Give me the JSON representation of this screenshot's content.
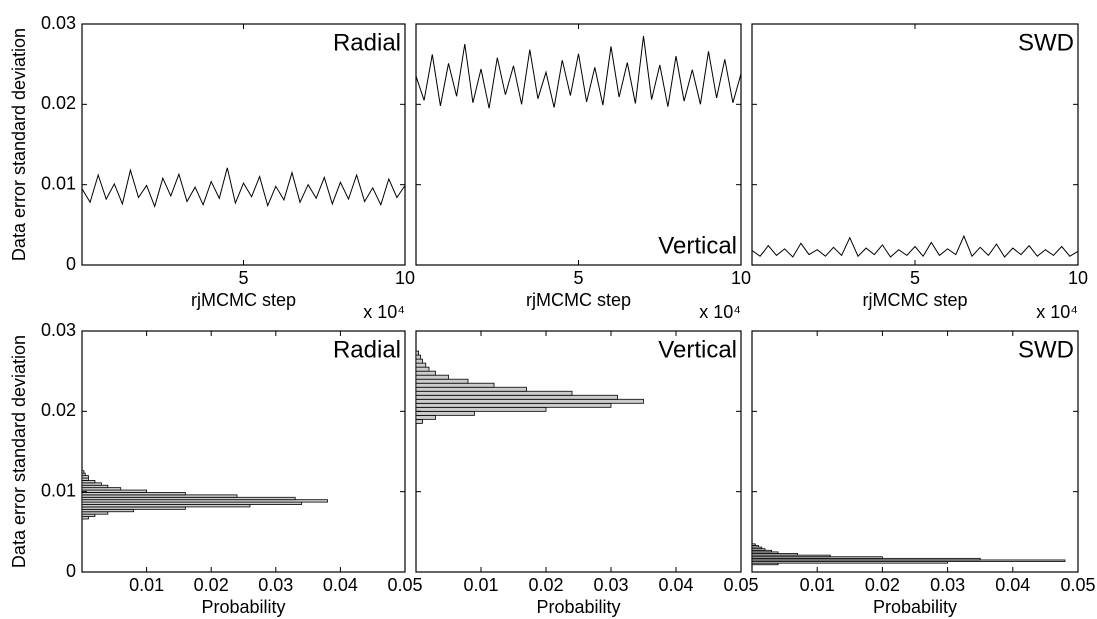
{
  "chart_data": [
    {
      "type": "line",
      "title": "Radial",
      "title_corner": "upper right",
      "xlabel": "rjMCMC step",
      "x_scale_label": "x 10⁴",
      "ylabel": "Data error standard deviation",
      "color": "#000000",
      "x": [
        0,
        2500,
        5000,
        7500,
        10000,
        12500,
        15000,
        17500,
        20000,
        22500,
        25000,
        27500,
        30000,
        32500,
        35000,
        37500,
        40000,
        42500,
        45000,
        47500,
        50000,
        52500,
        55000,
        57500,
        60000,
        62500,
        65000,
        67500,
        70000,
        72500,
        75000,
        77500,
        80000,
        82500,
        85000,
        87500,
        90000,
        92500,
        95000,
        97500,
        100000
      ],
      "values": [
        0.0095,
        0.0078,
        0.0112,
        0.0082,
        0.0101,
        0.0076,
        0.0118,
        0.0084,
        0.0099,
        0.0073,
        0.0108,
        0.0086,
        0.0113,
        0.0079,
        0.0097,
        0.0075,
        0.0104,
        0.0083,
        0.0121,
        0.0077,
        0.0102,
        0.0085,
        0.011,
        0.0074,
        0.0098,
        0.0081,
        0.0115,
        0.0078,
        0.01,
        0.0083,
        0.0109,
        0.0076,
        0.0103,
        0.0082,
        0.0112,
        0.0079,
        0.0096,
        0.0075,
        0.0107,
        0.0084,
        0.0099
      ],
      "xlim": [
        0,
        100000
      ],
      "xticks": [
        {
          "value": 50000,
          "label": "5"
        },
        {
          "value": 100000,
          "label": "10"
        }
      ],
      "ylim": [
        0,
        0.03
      ],
      "yticks": [
        0,
        0.01,
        0.02,
        0.03
      ]
    },
    {
      "type": "line",
      "title": "Vertical",
      "title_corner": "lower right",
      "xlabel": "rjMCMC step",
      "x_scale_label": "x 10⁴",
      "color": "#000000",
      "x": [
        0,
        2500,
        5000,
        7500,
        10000,
        12500,
        15000,
        17500,
        20000,
        22500,
        25000,
        27500,
        30000,
        32500,
        35000,
        37500,
        40000,
        42500,
        45000,
        47500,
        50000,
        52500,
        55000,
        57500,
        60000,
        62500,
        65000,
        67500,
        70000,
        72500,
        75000,
        77500,
        80000,
        82500,
        85000,
        87500,
        90000,
        92500,
        95000,
        97500,
        100000
      ],
      "values": [
        0.0235,
        0.0205,
        0.0262,
        0.0198,
        0.0251,
        0.021,
        0.0275,
        0.0202,
        0.0244,
        0.0195,
        0.0258,
        0.0212,
        0.0248,
        0.02,
        0.0268,
        0.0207,
        0.024,
        0.0196,
        0.0255,
        0.0211,
        0.0263,
        0.0203,
        0.0246,
        0.0199,
        0.0272,
        0.0209,
        0.0252,
        0.0201,
        0.0285,
        0.0206,
        0.0249,
        0.0197,
        0.026,
        0.0204,
        0.0243,
        0.02,
        0.0266,
        0.0208,
        0.0256,
        0.0202,
        0.0238
      ],
      "xlim": [
        0,
        100000
      ],
      "xticks": [
        {
          "value": 50000,
          "label": "5"
        },
        {
          "value": 100000,
          "label": "10"
        }
      ],
      "ylim": [
        0,
        0.03
      ],
      "yticks": [
        0,
        0.01,
        0.02,
        0.03
      ]
    },
    {
      "type": "line",
      "title": "SWD",
      "title_corner": "upper right",
      "xlabel": "rjMCMC step",
      "x_scale_label": "x 10⁴",
      "color": "#000000",
      "x": [
        0,
        2500,
        5000,
        7500,
        10000,
        12500,
        15000,
        17500,
        20000,
        22500,
        25000,
        27500,
        30000,
        32500,
        35000,
        37500,
        40000,
        42500,
        45000,
        47500,
        50000,
        52500,
        55000,
        57500,
        60000,
        62500,
        65000,
        67500,
        70000,
        72500,
        75000,
        77500,
        80000,
        82500,
        85000,
        87500,
        90000,
        92500,
        95000,
        97500,
        100000
      ],
      "values": [
        0.0018,
        0.0011,
        0.0024,
        0.0012,
        0.002,
        0.001,
        0.0027,
        0.0013,
        0.0019,
        0.0011,
        0.0022,
        0.0012,
        0.0034,
        0.0011,
        0.0021,
        0.0013,
        0.0025,
        0.001,
        0.0019,
        0.0012,
        0.0023,
        0.0011,
        0.0028,
        0.0012,
        0.002,
        0.0013,
        0.0036,
        0.0011,
        0.0022,
        0.0012,
        0.0026,
        0.001,
        0.0021,
        0.0013,
        0.0024,
        0.0011,
        0.0019,
        0.0012,
        0.0023,
        0.0011,
        0.0017
      ],
      "xlim": [
        0,
        100000
      ],
      "xticks": [
        {
          "value": 50000,
          "label": "5"
        },
        {
          "value": 100000,
          "label": "10"
        }
      ],
      "ylim": [
        0,
        0.03
      ],
      "yticks": [
        0,
        0.01,
        0.02,
        0.03
      ]
    },
    {
      "type": "histogram",
      "orientation": "horizontal",
      "title": "Radial",
      "title_corner": "upper right",
      "xlabel": "Probability",
      "ylabel": "Data error standard deviation",
      "color": "#cccccc",
      "bins": [
        0.0066,
        0.0069,
        0.0072,
        0.0075,
        0.0078,
        0.0081,
        0.0084,
        0.0087,
        0.009,
        0.0093,
        0.0096,
        0.0099,
        0.0102,
        0.0105,
        0.0108,
        0.0111,
        0.0114,
        0.0117,
        0.012,
        0.0123,
        0.0126
      ],
      "counts": [
        0.001,
        0.002,
        0.004,
        0.008,
        0.016,
        0.026,
        0.034,
        0.038,
        0.033,
        0.024,
        0.016,
        0.01,
        0.006,
        0.004,
        0.003,
        0.002,
        0.001,
        0.001,
        0.0005,
        0.0003
      ],
      "xlim": [
        0,
        0.05
      ],
      "xticks": [
        0.01,
        0.02,
        0.03,
        0.04,
        0.05
      ],
      "ylim": [
        0,
        0.03
      ],
      "yticks": [
        0,
        0.01,
        0.02,
        0.03
      ]
    },
    {
      "type": "histogram",
      "orientation": "horizontal",
      "title": "Vertical",
      "title_corner": "upper right",
      "xlabel": "Probability",
      "color": "#cccccc",
      "bins": [
        0.0185,
        0.019,
        0.0195,
        0.02,
        0.0205,
        0.021,
        0.0215,
        0.022,
        0.0225,
        0.023,
        0.0235,
        0.024,
        0.0245,
        0.025,
        0.0255,
        0.026,
        0.0265,
        0.027,
        0.0275
      ],
      "counts": [
        0.001,
        0.003,
        0.009,
        0.02,
        0.03,
        0.035,
        0.031,
        0.024,
        0.017,
        0.012,
        0.008,
        0.005,
        0.003,
        0.002,
        0.0015,
        0.001,
        0.0007,
        0.0004
      ],
      "xlim": [
        0,
        0.05
      ],
      "xticks": [
        0.01,
        0.02,
        0.03,
        0.04,
        0.05
      ],
      "ylim": [
        0,
        0.03
      ],
      "yticks": [
        0,
        0.01,
        0.02,
        0.03
      ]
    },
    {
      "type": "histogram",
      "orientation": "horizontal",
      "title": "SWD",
      "title_corner": "upper right",
      "xlabel": "Probability",
      "color": "#cccccc",
      "bins": [
        0.0009,
        0.0011,
        0.0013,
        0.0015,
        0.0017,
        0.0019,
        0.0021,
        0.0023,
        0.0025,
        0.0027,
        0.0029,
        0.0031,
        0.0033,
        0.0035
      ],
      "counts": [
        0.004,
        0.03,
        0.048,
        0.035,
        0.02,
        0.012,
        0.007,
        0.004,
        0.003,
        0.002,
        0.0015,
        0.001,
        0.0005
      ],
      "xlim": [
        0,
        0.05
      ],
      "xticks": [
        0.01,
        0.02,
        0.03,
        0.04,
        0.05
      ],
      "ylim": [
        0,
        0.03
      ],
      "yticks": [
        0,
        0.01,
        0.02,
        0.03
      ]
    }
  ]
}
